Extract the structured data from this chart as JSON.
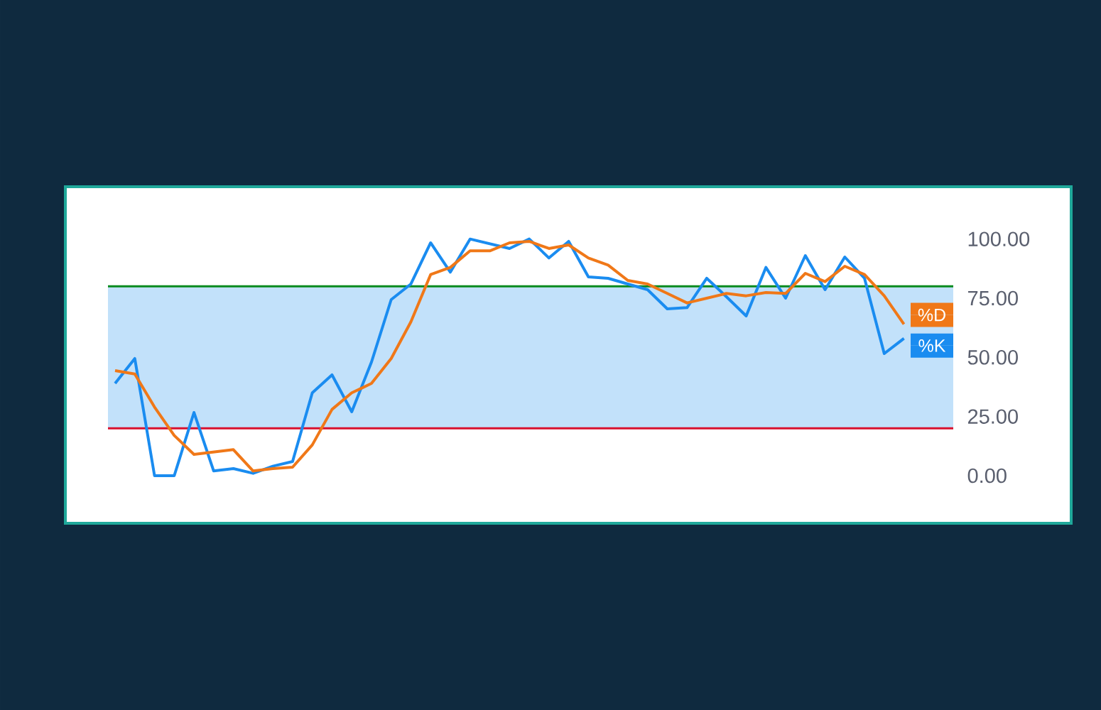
{
  "chart_data": {
    "type": "line",
    "categories": [
      null,
      null,
      null,
      null,
      null,
      null,
      null,
      null,
      null,
      null,
      null,
      null,
      null,
      null,
      null,
      null,
      null,
      null,
      null,
      null,
      null,
      null,
      null,
      null,
      null,
      null,
      null,
      null,
      null,
      null,
      null,
      null,
      null,
      null,
      null,
      null,
      null,
      null,
      null,
      null,
      null
    ],
    "series": [
      {
        "name": "%K",
        "color": "#1a8cf0",
        "values": [
          39,
          49.5,
          0,
          0,
          26.7,
          2,
          3,
          1,
          4,
          6,
          35,
          42.6,
          27,
          48,
          74.4,
          81,
          98.4,
          86,
          100,
          98,
          96,
          100,
          92,
          99,
          84,
          83.4,
          81,
          78.6,
          70.5,
          71,
          83.4,
          75.6,
          67.5,
          88,
          75,
          93,
          78.6,
          92.4,
          83.4,
          51.6,
          58
        ]
      },
      {
        "name": "%D",
        "color": "#f07818",
        "values": [
          44.4,
          43,
          29,
          17,
          9,
          10,
          11,
          2,
          3,
          3.6,
          13,
          28,
          35,
          39,
          49.5,
          65,
          85,
          88,
          95,
          95,
          98.4,
          99,
          96,
          97.5,
          92,
          89,
          82.5,
          81,
          77,
          73,
          75,
          77,
          76,
          77.4,
          77,
          85.5,
          82,
          88.5,
          85,
          76,
          64
        ]
      }
    ],
    "ylim": [
      -19.5,
      121.5
    ],
    "yticks": [
      {
        "value": 0,
        "label": "0.00"
      },
      {
        "value": 25,
        "label": "25.00"
      },
      {
        "value": 50,
        "label": "50.00"
      },
      {
        "value": 75,
        "label": "75.00"
      },
      {
        "value": 100,
        "label": "100.00"
      }
    ],
    "tick_labels": "y",
    "bands": [
      {
        "axis": "y",
        "from": 20,
        "to": 80,
        "color": "#c2e1fa"
      }
    ],
    "ref_lines": [
      {
        "axis": "y",
        "value": 80,
        "color": "#0a8a1e"
      },
      {
        "axis": "y",
        "value": 20,
        "color": "#d8102e"
      }
    ],
    "legend": "right",
    "line_style": "solid"
  }
}
